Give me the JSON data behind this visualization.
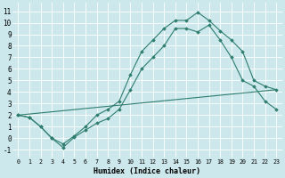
{
  "xlabel": "Humidex (Indice chaleur)",
  "bg_color": "#cce8ec",
  "grid_color": "#b8d4d8",
  "line_color": "#2e7d6e",
  "xlim": [
    -0.5,
    23.5
  ],
  "ylim": [
    -1.7,
    11.7
  ],
  "xticks": [
    0,
    1,
    2,
    3,
    4,
    5,
    6,
    7,
    8,
    9,
    10,
    11,
    12,
    13,
    14,
    15,
    16,
    17,
    18,
    19,
    20,
    21,
    22,
    23
  ],
  "yticks": [
    -1,
    0,
    1,
    2,
    3,
    4,
    5,
    6,
    7,
    8,
    9,
    10,
    11
  ],
  "series": [
    {
      "x": [
        0,
        1,
        2,
        3,
        4,
        5,
        6,
        7,
        8,
        9,
        10,
        11,
        12,
        13,
        14,
        15,
        16,
        17,
        18,
        19,
        20,
        21,
        22,
        23
      ],
      "y": [
        2,
        1.8,
        1.0,
        0,
        -0.5,
        0.2,
        1.0,
        2.0,
        2.5,
        3.2,
        5.5,
        7.5,
        8.5,
        9.5,
        10.2,
        10.2,
        10.9,
        10.2,
        9.3,
        8.5,
        7.5,
        5.0,
        4.5,
        4.2
      ]
    },
    {
      "x": [
        0,
        1,
        2,
        3,
        4,
        5,
        6,
        7,
        8,
        9,
        10,
        11,
        12,
        13,
        14,
        15,
        16,
        17,
        18,
        19,
        20,
        21,
        22,
        23
      ],
      "y": [
        2,
        1.8,
        1.0,
        0,
        -0.8,
        0.1,
        0.7,
        1.3,
        1.7,
        2.5,
        4.2,
        6.0,
        7.0,
        8.0,
        9.5,
        9.5,
        9.2,
        9.8,
        8.5,
        7.0,
        5.0,
        4.5,
        3.2,
        2.5
      ]
    },
    {
      "x": [
        0,
        23
      ],
      "y": [
        2,
        4.2
      ]
    }
  ]
}
